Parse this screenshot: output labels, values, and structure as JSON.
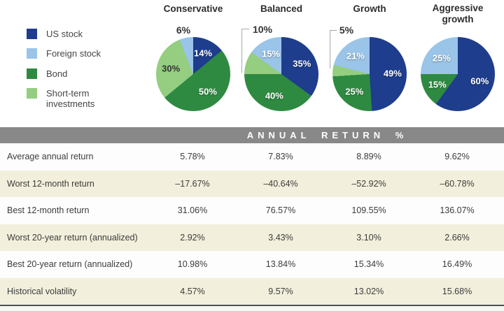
{
  "chart_data": {
    "type": "pie",
    "palette": {
      "us_stock": "#1e3d8c",
      "foreign_stock": "#9ac4e8",
      "bond": "#2e8a41",
      "short_term": "#95cd81"
    },
    "pies": [
      {
        "title": "Conservative",
        "external_label": "6%",
        "slices": [
          {
            "asset": "us_stock",
            "label": "14%",
            "value": 14,
            "label_style": "light"
          },
          {
            "asset": "bond",
            "label": "50%",
            "value": 50,
            "label_style": "light"
          },
          {
            "asset": "short_term",
            "label": "30%",
            "value": 30,
            "label_style": "dark"
          },
          {
            "asset": "foreign_stock",
            "label": "6%",
            "value": 6,
            "label_style": "outside"
          }
        ]
      },
      {
        "title": "Balanced",
        "external_label": "10%",
        "slices": [
          {
            "asset": "us_stock",
            "label": "35%",
            "value": 35,
            "label_style": "light"
          },
          {
            "asset": "bond",
            "label": "40%",
            "value": 40,
            "label_style": "light"
          },
          {
            "asset": "short_term",
            "label": "10%",
            "value": 10,
            "label_style": "outside"
          },
          {
            "asset": "foreign_stock",
            "label": "15%",
            "value": 15,
            "label_style": "light"
          }
        ]
      },
      {
        "title": "Growth",
        "external_label": "5%",
        "slices": [
          {
            "asset": "us_stock",
            "label": "49%",
            "value": 49,
            "label_style": "light"
          },
          {
            "asset": "bond",
            "label": "25%",
            "value": 25,
            "label_style": "light"
          },
          {
            "asset": "short_term",
            "label": "5%",
            "value": 5,
            "label_style": "outside"
          },
          {
            "asset": "foreign_stock",
            "label": "21%",
            "value": 21,
            "label_style": "light"
          }
        ]
      },
      {
        "title": "Aggressive growth",
        "external_label": "",
        "slices": [
          {
            "asset": "us_stock",
            "label": "60%",
            "value": 60,
            "label_style": "light"
          },
          {
            "asset": "bond",
            "label": "15%",
            "value": 15,
            "label_style": "light"
          },
          {
            "asset": "foreign_stock",
            "label": "25%",
            "value": 25,
            "label_style": "light"
          }
        ]
      }
    ]
  },
  "legend": {
    "items": [
      {
        "label": "US stock",
        "asset": "us_stock"
      },
      {
        "label": "Foreign stock",
        "asset": "foreign_stock"
      },
      {
        "label": "Bond",
        "asset": "bond"
      },
      {
        "label": "Short-term investments",
        "asset": "short_term"
      }
    ]
  },
  "table": {
    "header": "ANNUAL RETURN %",
    "rows": [
      {
        "label": "Average annual return",
        "values": [
          "5.78%",
          "7.83%",
          "8.89%",
          "9.62%"
        ]
      },
      {
        "label": "Worst 12-month return",
        "values": [
          "–17.67%",
          "–40.64%",
          "–52.92%",
          "–60.78%"
        ]
      },
      {
        "label": "Best 12-month return",
        "values": [
          "31.06%",
          "76.57%",
          "109.55%",
          "136.07%"
        ]
      },
      {
        "label": "Worst 20-year return (annualized)",
        "values": [
          "2.92%",
          "3.43%",
          "3.10%",
          "2.66%"
        ]
      },
      {
        "label": "Best 20-year return (annualized)",
        "values": [
          "10.98%",
          "13.84%",
          "15.34%",
          "16.49%"
        ]
      },
      {
        "label": "Historical volatility",
        "values": [
          "4.57%",
          "9.57%",
          "13.02%",
          "15.68%"
        ]
      }
    ]
  }
}
